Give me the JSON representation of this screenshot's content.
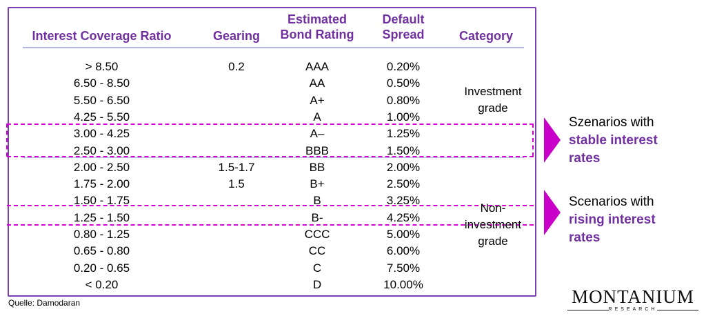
{
  "headers": {
    "icr": "Interest Coverage Ratio",
    "gearing": "Gearing",
    "rating_1": "Estimated",
    "rating_2": "Bond Rating",
    "spread_1": "Default",
    "spread_2": "Spread",
    "category": "Category"
  },
  "rows": [
    {
      "icr": "> 8.50",
      "gearing": "0.2",
      "rating": "AAA",
      "spread": "0.20%"
    },
    {
      "icr": "6.50 - 8.50",
      "gearing": "",
      "rating": "AA",
      "spread": "0.50%"
    },
    {
      "icr": "5.50 - 6.50",
      "gearing": "",
      "rating": "A+",
      "spread": "0.80%"
    },
    {
      "icr": "4.25 - 5.50",
      "gearing": "",
      "rating": "A",
      "spread": "1.00%"
    },
    {
      "icr": "3.00 - 4.25",
      "gearing": "",
      "rating": "A–",
      "spread": "1.25%"
    },
    {
      "icr": "2.50 - 3.00",
      "gearing": "",
      "rating": "BBB",
      "spread": "1.50%"
    },
    {
      "icr": "2.00 - 2.50",
      "gearing": "1.5-1.7",
      "rating": "BB",
      "spread": "2.00%"
    },
    {
      "icr": "1.75 - 2.00",
      "gearing": "1.5",
      "rating": "B+",
      "spread": "2.50%"
    },
    {
      "icr": "1.50 - 1.75",
      "gearing": "",
      "rating": "B",
      "spread": "3.25%"
    },
    {
      "icr": "1.25 - 1.50",
      "gearing": "",
      "rating": "B-",
      "spread": "4.25%"
    },
    {
      "icr": "0.80 - 1.25",
      "gearing": "",
      "rating": "CCC",
      "spread": "5.00%"
    },
    {
      "icr": "0.65 - 0.80",
      "gearing": "",
      "rating": "CC",
      "spread": "6.00%"
    },
    {
      "icr": "0.20 - 0.65",
      "gearing": "",
      "rating": "C",
      "spread": "7.50%"
    },
    {
      "icr": "< 0.20",
      "gearing": "",
      "rating": "D",
      "spread": "10.00%"
    }
  ],
  "categories": {
    "investment_1": "Investment",
    "investment_2": "grade",
    "non_1": "Non-",
    "non_2": "investment",
    "non_3": "grade"
  },
  "notes": {
    "stable_1": "Szenarios with",
    "stable_2": "stable interest",
    "stable_3": "rates",
    "rising_1": "Scenarios with",
    "rising_2": "rising interest",
    "rising_3": "rates"
  },
  "source": "Quelle: Damodaran",
  "logo": {
    "name": "MONTANIUM",
    "sub": "RESEARCH"
  },
  "colors": {
    "accent": "#7030a0",
    "highlight": "#d400d4"
  }
}
